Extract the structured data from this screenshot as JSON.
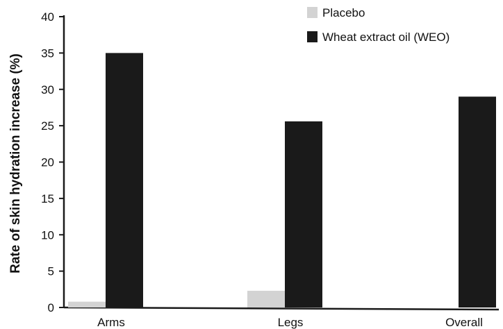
{
  "chart_data": {
    "type": "bar",
    "title": "",
    "xlabel": "",
    "ylabel": "Rate of skin hydration increase (%)",
    "categories": [
      "Arms",
      "Legs",
      "Overall"
    ],
    "series": [
      {
        "name": "Placebo",
        "values": [
          0.8,
          2.3,
          0
        ],
        "color": "#d3d3d3"
      },
      {
        "name": "Wheat extract oil (WEO)",
        "values": [
          35,
          25.6,
          29
        ],
        "color": "#1a1a1a"
      }
    ],
    "ylim": [
      0,
      40
    ],
    "yticks": [
      0,
      5,
      10,
      15,
      20,
      25,
      30,
      35,
      40
    ],
    "grid": false,
    "legend_position": "top-right"
  }
}
